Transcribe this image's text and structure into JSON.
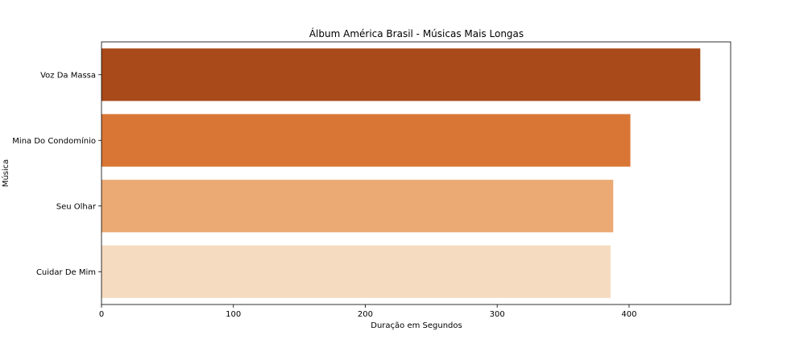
{
  "chart_data": {
    "type": "bar",
    "orientation": "horizontal",
    "title": "Álbum América Brasil - Músicas Mais Longas",
    "xlabel": "Duração em Segundos",
    "ylabel": "Música",
    "categories": [
      "Voz Da Massa",
      "Mina Do Condomínio",
      "Seu Olhar",
      "Cuidar De Mim"
    ],
    "values": [
      454,
      401,
      388,
      386
    ],
    "colors": [
      "#a84a1a",
      "#d97636",
      "#eba974",
      "#f5dbbf"
    ],
    "xlim": [
      0,
      477
    ],
    "xticks": [
      0,
      100,
      200,
      300,
      400
    ],
    "grid": false,
    "legend": false
  }
}
